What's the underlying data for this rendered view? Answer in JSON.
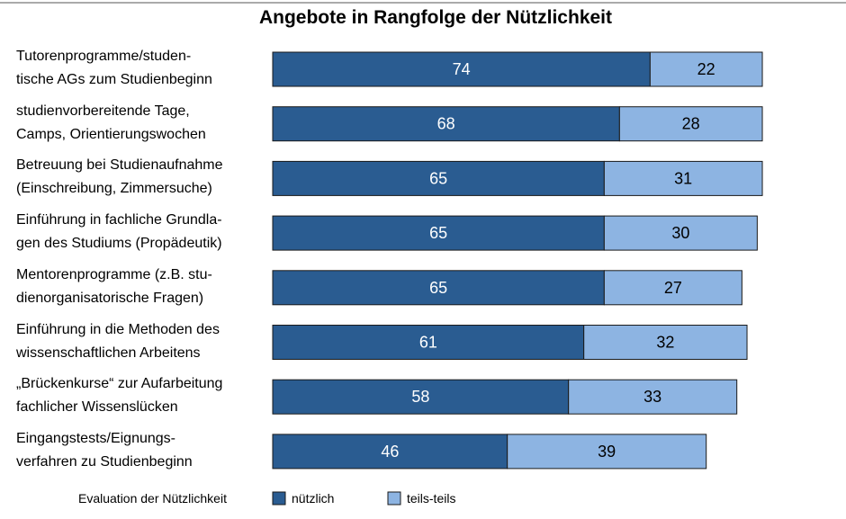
{
  "chart_data": {
    "type": "bar",
    "stacked": true,
    "orientation": "horizontal",
    "title": "Angebote  in Rangfolge der Nützlichkeit",
    "categories": [
      "Tutorenprogramme/studen-\ntische AGs zum Studienbeginn",
      "studienvorbereitende Tage,\nCamps, Orientierungswochen",
      "Betreuung bei Studienaufnahme\n(Einschreibung, Zimmersuche)",
      "Einführung in fachliche Grundla-\ngen des Studiums (Propädeutik)",
      "Mentorenprogramme (z.B. stu-\ndienorganisatorische Fragen)",
      "Einführung in die Methoden des\nwissenschaftlichen Arbeitens",
      "„Brückenkurse“ zur Aufarbeitung\nfachlicher Wissenslücken",
      "Eingangstests/Eignungs-\nverfahren zu Studienbeginn"
    ],
    "series": [
      {
        "name": "nützlich",
        "color": "#2a5c91",
        "label_color": "#ffffff",
        "values": [
          74,
          68,
          65,
          65,
          65,
          61,
          58,
          46
        ]
      },
      {
        "name": "teils-teils",
        "color": "#8db4e2",
        "label_color": "#000000",
        "values": [
          22,
          28,
          31,
          30,
          27,
          32,
          33,
          39
        ]
      }
    ],
    "legend_title": "Evaluation der Nützlichkeit"
  }
}
